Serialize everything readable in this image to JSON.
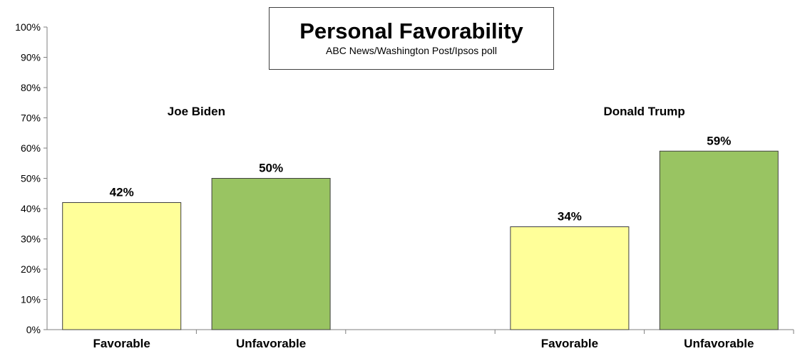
{
  "chart_data": {
    "type": "bar",
    "title": "Personal Favorability",
    "subtitle": "ABC News/Washington Post/Ipsos poll",
    "ylim": [
      0,
      100
    ],
    "yticks": [
      "0%",
      "10%",
      "20%",
      "30%",
      "40%",
      "50%",
      "60%",
      "70%",
      "80%",
      "90%",
      "100%"
    ],
    "grid": false,
    "legend": "none",
    "groups": [
      {
        "name": "Joe Biden",
        "bars": [
          {
            "category": "Favorable",
            "value": 42,
            "label": "42%",
            "color": "#FFFF99"
          },
          {
            "category": "Unfavorable",
            "value": 50,
            "label": "50%",
            "color": "#99C462"
          }
        ]
      },
      {
        "name": "Donald Trump",
        "bars": [
          {
            "category": "Favorable",
            "value": 34,
            "label": "34%",
            "color": "#FFFF99"
          },
          {
            "category": "Unfavorable",
            "value": 59,
            "label": "59%",
            "color": "#99C462"
          }
        ]
      }
    ]
  }
}
